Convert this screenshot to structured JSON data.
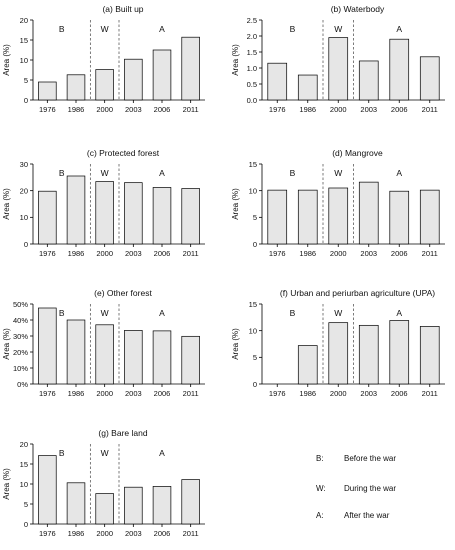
{
  "chart_data": [
    {
      "type": "bar",
      "title": "(a) Built up",
      "ylabel": "Area (%)",
      "categories": [
        "1976",
        "1986",
        "2000",
        "2003",
        "2006",
        "2011"
      ],
      "values": [
        4.5,
        6.3,
        7.6,
        10.2,
        12.5,
        15.7
      ],
      "ylim": [
        0,
        20
      ],
      "yticks": [
        "0",
        "5",
        "10",
        "15",
        "20"
      ],
      "periods": [
        "B",
        "W",
        "A"
      ]
    },
    {
      "type": "bar",
      "title": "(b) Waterbody",
      "ylabel": "Area (%)",
      "categories": [
        "1976",
        "1986",
        "2000",
        "2003",
        "2006",
        "2011"
      ],
      "values": [
        1.15,
        0.78,
        1.95,
        1.22,
        1.9,
        1.35
      ],
      "ylim": [
        0,
        2.5
      ],
      "yticks": [
        "0.0",
        "0.5",
        "1.0",
        "1.5",
        "2.0",
        "2.5"
      ],
      "periods": [
        "B",
        "W",
        "A"
      ]
    },
    {
      "type": "bar",
      "title": "(c) Protected forest",
      "ylabel": "Area (%)",
      "categories": [
        "1976",
        "1986",
        "2000",
        "2003",
        "2006",
        "2011"
      ],
      "values": [
        19.8,
        25.5,
        23.4,
        23.0,
        21.2,
        20.8
      ],
      "ylim": [
        0,
        30
      ],
      "yticks": [
        "0",
        "10",
        "20",
        "30"
      ],
      "periods": [
        "B",
        "W",
        "A"
      ]
    },
    {
      "type": "bar",
      "title": "(d) Mangrove",
      "ylabel": "Area (%)",
      "categories": [
        "1976",
        "1986",
        "2000",
        "2003",
        "2006",
        "2011"
      ],
      "values": [
        10.1,
        10.1,
        10.5,
        11.6,
        9.9,
        10.1
      ],
      "ylim": [
        0,
        15
      ],
      "yticks": [
        "0",
        "5",
        "10",
        "15"
      ],
      "periods": [
        "B",
        "W",
        "A"
      ]
    },
    {
      "type": "bar",
      "title": "(e) Other forest",
      "ylabel": "Area (%)",
      "categories": [
        "1976",
        "1986",
        "2000",
        "2003",
        "2006",
        "2011"
      ],
      "values": [
        47.5,
        40.0,
        37.0,
        33.5,
        33.2,
        29.8
      ],
      "ylim": [
        0,
        50
      ],
      "yticks": [
        "0%",
        "10%",
        "20%",
        "30%",
        "40%",
        "50%"
      ],
      "periods": [
        "B",
        "W",
        "A"
      ]
    },
    {
      "type": "bar",
      "title": "(f) Urban and periurban agriculture (UPA)",
      "ylabel": "Area (%)",
      "categories": [
        "1976",
        "1986",
        "2000",
        "2003",
        "2006",
        "2011"
      ],
      "values": [
        null,
        7.2,
        11.5,
        11.0,
        11.9,
        10.8
      ],
      "ylim": [
        0,
        15
      ],
      "yticks": [
        "0",
        "5",
        "10",
        "15"
      ],
      "periods": [
        "B",
        "W",
        "A"
      ]
    },
    {
      "type": "bar",
      "title": "(g) Bare land",
      "ylabel": "Area (%)",
      "categories": [
        "1976",
        "1986",
        "2000",
        "2003",
        "2006",
        "2011"
      ],
      "values": [
        17.1,
        10.3,
        7.6,
        9.2,
        9.4,
        11.1
      ],
      "ylim": [
        0,
        20
      ],
      "yticks": [
        "0",
        "5",
        "10",
        "15",
        "20"
      ],
      "periods": [
        "B",
        "W",
        "A"
      ]
    }
  ],
  "legend": [
    {
      "key": "B:",
      "text": "Before the war"
    },
    {
      "key": "W:",
      "text": "During the war"
    },
    {
      "key": "A:",
      "text": "After the war"
    }
  ],
  "colors": {
    "bar_fill": "#e6e6e6",
    "bar_stroke": "#000000",
    "axis": "#000000",
    "divider": "#444444"
  }
}
